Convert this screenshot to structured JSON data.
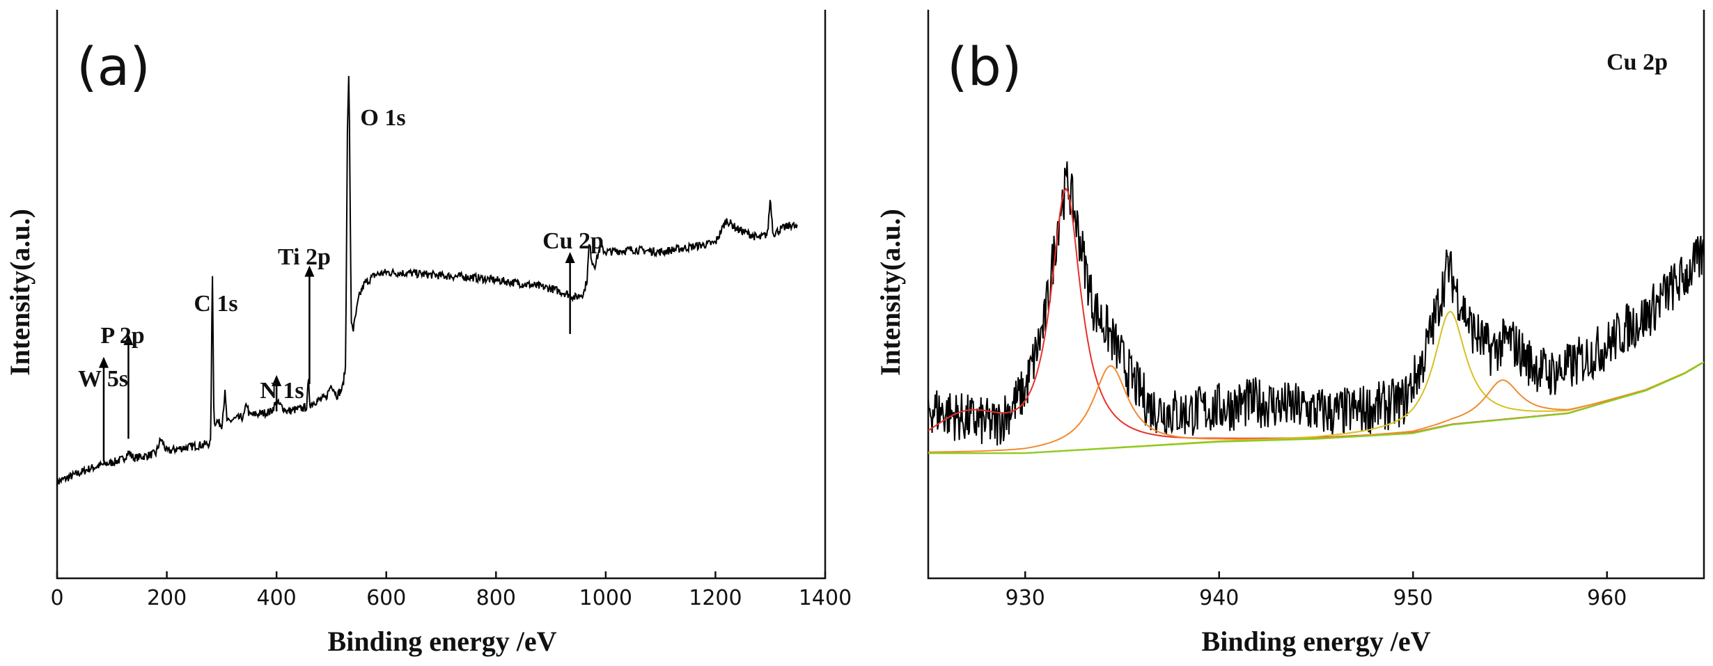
{
  "chart_data": [
    {
      "type": "line",
      "panel": "(a)",
      "xlabel": "Binding energy /eV",
      "ylabel": "Intensity(a.u.)",
      "xlim": [
        0,
        1400
      ],
      "ylim": [
        0,
        1
      ],
      "xticks": [
        0,
        200,
        400,
        600,
        800,
        1000,
        1200,
        1400
      ],
      "x_tick_labels": [
        "0",
        "200",
        "400",
        "600",
        "800",
        "1000",
        "1200",
        "1400"
      ],
      "series": [
        {
          "name": "survey",
          "x": [
            0,
            20,
            40,
            60,
            80,
            100,
            120,
            130,
            140,
            160,
            180,
            189,
            200,
            220,
            240,
            260,
            280,
            283,
            286,
            290,
            300,
            306,
            310,
            320,
            340,
            346,
            350,
            370,
            390,
            400,
            420,
            440,
            455,
            458,
            461,
            470,
            490,
            500,
            510,
            520,
            526,
            529,
            532,
            536,
            540,
            550,
            560,
            580,
            600,
            650,
            700,
            750,
            800,
            850,
            900,
            930,
            945,
            960,
            966,
            970,
            975,
            980,
            990,
            1000,
            1050,
            1100,
            1150,
            1200,
            1220,
            1240,
            1260,
            1280,
            1295,
            1300,
            1305,
            1320,
            1340,
            1350
          ],
          "y": [
            0.095,
            0.105,
            0.115,
            0.125,
            0.132,
            0.138,
            0.145,
            0.16,
            0.148,
            0.152,
            0.158,
            0.19,
            0.162,
            0.168,
            0.172,
            0.176,
            0.18,
            0.57,
            0.22,
            0.23,
            0.22,
            0.29,
            0.225,
            0.232,
            0.238,
            0.27,
            0.242,
            0.245,
            0.25,
            0.27,
            0.25,
            0.255,
            0.26,
            0.32,
            0.265,
            0.272,
            0.28,
            0.31,
            0.285,
            0.3,
            0.35,
            0.86,
            1.0,
            0.45,
            0.43,
            0.5,
            0.53,
            0.55,
            0.555,
            0.553,
            0.548,
            0.545,
            0.538,
            0.53,
            0.52,
            0.508,
            0.5,
            0.51,
            0.54,
            0.62,
            0.58,
            0.57,
            0.61,
            0.6,
            0.605,
            0.6,
            0.61,
            0.62,
            0.67,
            0.65,
            0.64,
            0.63,
            0.64,
            0.72,
            0.64,
            0.65,
            0.66,
            0.65
          ]
        }
      ],
      "annotations": [
        {
          "label": "W 5s",
          "x": 85,
          "arrow_from": 0.14,
          "arrow_to": 0.37
        },
        {
          "label": "P 2p",
          "x": 130,
          "arrow_from": 0.19,
          "arrow_to": 0.42
        },
        {
          "label": "C 1s",
          "x": 285,
          "arrow_from": null,
          "arrow_to": null
        },
        {
          "label": "N 1s",
          "x": 400,
          "arrow_from": 0.25,
          "arrow_to": 0.33
        },
        {
          "label": "Ti 2p",
          "x": 460,
          "arrow_from": 0.31,
          "arrow_to": 0.57
        },
        {
          "label": "O 1s",
          "x": 530,
          "arrow_from": null,
          "arrow_to": null
        },
        {
          "label": "Cu 2p",
          "x": 935,
          "arrow_from": 0.42,
          "arrow_to": 0.6
        }
      ]
    },
    {
      "type": "line",
      "panel": "(b)",
      "title": "Cu 2p",
      "xlabel": "Binding energy /eV",
      "ylabel": "Intensity(a.u.)",
      "xlim": [
        925,
        965
      ],
      "ylim": [
        0,
        1
      ],
      "xticks": [
        930,
        940,
        950,
        960
      ],
      "x_tick_labels": [
        "930",
        "940",
        "950",
        "960"
      ],
      "series": [
        {
          "name": "experimental",
          "color": "#000000",
          "x": [
            925,
            927,
            928.5,
            930,
            931,
            931.8,
            932.2,
            932.8,
            933.5,
            934.5,
            935.5,
            936.5,
            938,
            940,
            942,
            944,
            946,
            948,
            949.5,
            950.5,
            951.3,
            951.8,
            952.3,
            953,
            954,
            955,
            956,
            957,
            958,
            959,
            960,
            961,
            962,
            963,
            964,
            965
          ],
          "y": [
            0.3,
            0.28,
            0.27,
            0.33,
            0.45,
            0.65,
            0.7,
            0.6,
            0.48,
            0.42,
            0.35,
            0.3,
            0.29,
            0.3,
            0.31,
            0.3,
            0.29,
            0.3,
            0.31,
            0.38,
            0.48,
            0.55,
            0.5,
            0.44,
            0.4,
            0.42,
            0.38,
            0.36,
            0.37,
            0.39,
            0.41,
            0.44,
            0.46,
            0.5,
            0.53,
            0.57
          ]
        },
        {
          "name": "fit Cu 2p3/2 main",
          "color": "#e8302a",
          "center": 932.1,
          "height": 0.46,
          "width": 0.95
        },
        {
          "name": "fit Cu 2p3/2 satellite",
          "color": "#f28a30",
          "center": 934.4,
          "height": 0.145,
          "width": 1.1
        },
        {
          "name": "fit Cu 2p1/2 main",
          "color": "#d8c020",
          "center": 951.9,
          "height": 0.2,
          "width": 1.0
        },
        {
          "name": "fit Cu 2p1/2 satellite",
          "color": "#f28a30",
          "center": 954.6,
          "height": 0.07,
          "width": 1.1
        },
        {
          "name": "background",
          "color": "#7ed321",
          "x": [
            925,
            930,
            935,
            940,
            945,
            950,
            952,
            955,
            958,
            960,
            962,
            964,
            965
          ],
          "y": [
            0.22,
            0.22,
            0.23,
            0.24,
            0.245,
            0.255,
            0.27,
            0.28,
            0.29,
            0.31,
            0.33,
            0.36,
            0.38
          ]
        }
      ]
    }
  ]
}
